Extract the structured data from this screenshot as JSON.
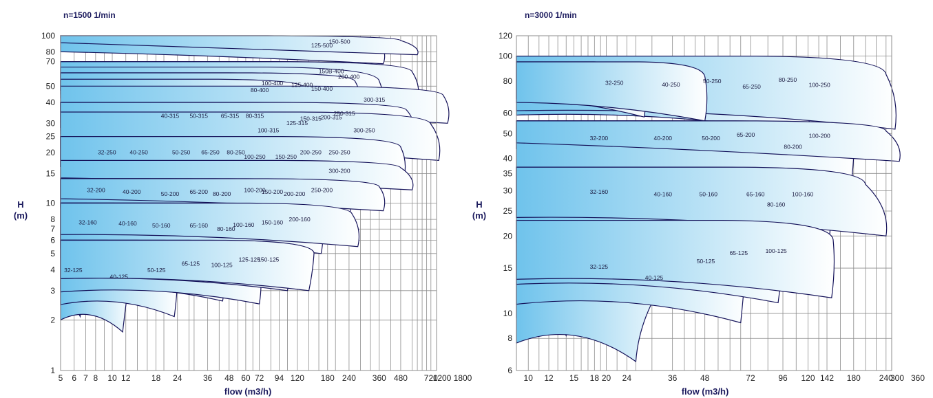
{
  "chart_data": [
    {
      "type": "area",
      "title": "n=1500  1/min",
      "xlabel": "flow (m3/h)",
      "ylabel": "H\n(m)",
      "x_scale": "log",
      "y_scale": "log",
      "xlim": [
        5,
        1800
      ],
      "ylim": [
        1,
        100
      ],
      "x_ticks": [
        "5",
        "6",
        "7",
        "8",
        "10",
        "12",
        "18",
        "24",
        "36",
        "48",
        "60",
        "72",
        "94",
        "120",
        "180",
        "240",
        "360",
        "480",
        "720",
        "1200",
        "1800"
      ],
      "y_ticks": [
        "1",
        "2",
        "3",
        "4",
        "5",
        "6",
        "7",
        "8",
        "10",
        "15",
        "20",
        "25",
        "30",
        "40",
        "50",
        "70",
        "80",
        "100"
      ],
      "grid": true,
      "pumps": [
        {
          "label": "32-125",
          "qmax": 7.0,
          "hmax": 6.0,
          "qend": 6.5,
          "hend": 2.1
        },
        {
          "label": "40-125",
          "qmax": 13,
          "hmax": 6.0,
          "qend": 11.5,
          "hend": 1.7
        },
        {
          "label": "50-125",
          "qmax": 24,
          "hmax": 6.0,
          "qend": 23,
          "hend": 2.1
        },
        {
          "label": "65-125",
          "qmax": 42,
          "hmax": 6.0,
          "qend": 44,
          "hend": 2.6
        },
        {
          "label": "100-125",
          "qmax": 70,
          "hmax": 6.0,
          "qend": 72,
          "hend": 2.5
        },
        {
          "label": "125-125",
          "qmax": 110,
          "hmax": 6.0,
          "qend": 105,
          "hend": 3.0
        },
        {
          "label": "150-125",
          "qmax": 150,
          "hmax": 6.0,
          "qend": 140,
          "hend": 3.0
        },
        {
          "label": "32-160",
          "qmax": 8.5,
          "hmax": 10,
          "qend": 9.5,
          "hend": 5.0
        },
        {
          "label": "40-160",
          "qmax": 15,
          "hmax": 10,
          "qend": 16,
          "hend": 4.8
        },
        {
          "label": "50-160",
          "qmax": 26,
          "hmax": 10,
          "qend": 27,
          "hend": 4.5
        },
        {
          "label": "65-160",
          "qmax": 48,
          "hmax": 10,
          "qend": 50,
          "hend": 4.5
        },
        {
          "label": "80-160",
          "qmax": 75,
          "hmax": 10,
          "qend": 72,
          "hend": 4.0
        },
        {
          "label": "100-160",
          "qmax": 100,
          "hmax": 10,
          "qend": 105,
          "hend": 4.6
        },
        {
          "label": "150-160",
          "qmax": 160,
          "hmax": 10,
          "qend": 165,
          "hend": 5.0
        },
        {
          "label": "32-200",
          "qmax": 9.5,
          "hmax": 14,
          "qend": 10.5,
          "hend": 9.0
        },
        {
          "label": "40-200",
          "qmax": 16,
          "hmax": 14,
          "qend": 18,
          "hend": 8.5
        },
        {
          "label": "50-200",
          "qmax": 30,
          "hmax": 14,
          "qend": 32,
          "hend": 8.0
        },
        {
          "label": "65-200",
          "qmax": 48,
          "hmax": 14,
          "qend": 50,
          "hend": 8.5
        },
        {
          "label": "80-200",
          "qmax": 70,
          "hmax": 14,
          "qend": 78,
          "hend": 8.0
        },
        {
          "label": "100-200",
          "qmax": 120,
          "hmax": 14,
          "qend": 112,
          "hend": 9.0
        },
        {
          "label": "150-200",
          "qmax": 160,
          "hmax": 14,
          "qend": 150,
          "hend": 8.5
        },
        {
          "label": "200-200",
          "qmax": 230,
          "hmax": 14,
          "qend": 240,
          "hend": 8.0
        },
        {
          "label": "200-160",
          "qmax": 250,
          "hmax": 10,
          "qend": 270,
          "hend": 5.5
        },
        {
          "label": "32-250",
          "qmax": 11,
          "hmax": 25,
          "qend": 12,
          "hend": 14
        },
        {
          "label": "40-250",
          "qmax": 18,
          "hmax": 25,
          "qend": 20,
          "hend": 14
        },
        {
          "label": "50-250",
          "qmax": 36,
          "hmax": 25,
          "qend": 38,
          "hend": 14
        },
        {
          "label": "65-250",
          "qmax": 58,
          "hmax": 25,
          "qend": 60,
          "hend": 14
        },
        {
          "label": "80-250",
          "qmax": 88,
          "hmax": 25,
          "qend": 90,
          "hend": 14
        },
        {
          "label": "100-250",
          "qmax": 120,
          "hmax": 25,
          "qend": 125,
          "hend": 12
        },
        {
          "label": "150-250",
          "qmax": 200,
          "hmax": 25,
          "qend": 205,
          "hend": 12
        },
        {
          "label": "200-250",
          "qmax": 300,
          "hmax": 25,
          "qend": 320,
          "hend": 14
        },
        {
          "label": "250-250",
          "qmax": 480,
          "hmax": 25,
          "qend": 500,
          "hend": 14
        },
        {
          "label": "250-200",
          "qmax": 360,
          "hmax": 14,
          "qend": 380,
          "hend": 9
        },
        {
          "label": "300-200",
          "qmax": 480,
          "hmax": 18,
          "qend": 560,
          "hend": 12
        },
        {
          "label": "40-315",
          "qmax": 30,
          "hmax": 40,
          "qend": 32,
          "hend": 24
        },
        {
          "label": "50-315",
          "qmax": 48,
          "hmax": 40,
          "qend": 52,
          "hend": 24
        },
        {
          "label": "65-315",
          "qmax": 80,
          "hmax": 40,
          "qend": 84,
          "hend": 24
        },
        {
          "label": "80-315",
          "qmax": 120,
          "hmax": 40,
          "qend": 125,
          "hend": 24
        },
        {
          "label": "100-315",
          "qmax": 150,
          "hmax": 40,
          "qend": 160,
          "hend": 15
        },
        {
          "label": "125-315",
          "qmax": 240,
          "hmax": 40,
          "qend": 245,
          "hend": 19
        },
        {
          "label": "150-315",
          "qmax": 300,
          "hmax": 40,
          "qend": 330,
          "hend": 22
        },
        {
          "label": "200-315",
          "qmax": 420,
          "hmax": 40,
          "qend": 430,
          "hend": 23
        },
        {
          "label": "250-315",
          "qmax": 520,
          "hmax": 40,
          "qend": 560,
          "hend": 26
        },
        {
          "label": "300-250",
          "qmax": 720,
          "hmax": 35,
          "qend": 800,
          "hend": 18
        },
        {
          "label": "300-315",
          "qmax": 850,
          "hmax": 50,
          "qend": 900,
          "hend": 30
        },
        {
          "label": "80-400",
          "qmax": 130,
          "hmax": 55,
          "qend": 135,
          "hend": 36
        },
        {
          "label": "100-400",
          "qmax": 160,
          "hmax": 60,
          "qend": 170,
          "hend": 40
        },
        {
          "label": "125-400",
          "qmax": 260,
          "hmax": 60,
          "qend": 270,
          "hend": 38
        },
        {
          "label": "150-400",
          "qmax": 360,
          "hmax": 65,
          "qend": 380,
          "hend": 30
        },
        {
          "label": "150B-400",
          "qmax": 420,
          "hmax": 70,
          "qend": 440,
          "hend": 48
        },
        {
          "label": "200-400",
          "qmax": 560,
          "hmax": 70,
          "qend": 600,
          "hend": 40
        },
        {
          "label": "125-500",
          "qmax": 360,
          "hmax": 100,
          "qend": 380,
          "hend": 68
        },
        {
          "label": "150-500",
          "qmax": 480,
          "hmax": 100,
          "qend": 600,
          "hend": 77
        }
      ]
    },
    {
      "type": "area",
      "title": "n=3000  1/min",
      "xlabel": "flow (m3/h)",
      "ylabel": "H\n(m)",
      "x_scale": "log",
      "y_scale": "log",
      "xlim": [
        9,
        360
      ],
      "ylim": [
        6,
        120
      ],
      "x_ticks": [
        "10",
        "12",
        "15",
        "18",
        "20",
        "24",
        "36",
        "48",
        "72",
        "96",
        "120",
        "142",
        "180",
        "240",
        "300",
        "360"
      ],
      "y_ticks": [
        "6",
        "8",
        "10",
        "15",
        "20",
        "25",
        "30",
        "35",
        "40",
        "50",
        "60",
        "80",
        "100",
        "120"
      ],
      "grid": true,
      "pumps": [
        {
          "label": "32-125",
          "qmax": 22,
          "hmax": 23,
          "qend": 14,
          "hend": 8.2
        },
        {
          "label": "40-125",
          "qmax": 40,
          "hmax": 23,
          "qend": 26,
          "hend": 6.5
        },
        {
          "label": "50-125",
          "qmax": 70,
          "hmax": 23,
          "qend": 66,
          "hend": 9.2
        },
        {
          "label": "65-125",
          "qmax": 100,
          "hmax": 23,
          "qend": 92,
          "hend": 11
        },
        {
          "label": "100-125",
          "qmax": 150,
          "hmax": 23,
          "qend": 148,
          "hend": 11.5
        },
        {
          "label": "32-160",
          "qmax": 22,
          "hmax": 37,
          "qend": 25,
          "hend": 21
        },
        {
          "label": "40-160",
          "qmax": 44,
          "hmax": 37,
          "qend": 46,
          "hend": 20
        },
        {
          "label": "50-160",
          "qmax": 72,
          "hmax": 37,
          "qend": 72,
          "hend": 20
        },
        {
          "label": "65-160",
          "qmax": 120,
          "hmax": 37,
          "qend": 112,
          "hend": 20
        },
        {
          "label": "80-160",
          "qmax": 150,
          "hmax": 37,
          "qend": 142,
          "hend": 16
        },
        {
          "label": "100-160",
          "qmax": 200,
          "hmax": 37,
          "qend": 240,
          "hend": 20
        },
        {
          "label": "32-200",
          "qmax": 22,
          "hmax": 56,
          "qend": 25,
          "hend": 37
        },
        {
          "label": "40-200",
          "qmax": 44,
          "hmax": 56,
          "qend": 44,
          "hend": 37
        },
        {
          "label": "50-200",
          "qmax": 74,
          "hmax": 56,
          "qend": 72,
          "hend": 37
        },
        {
          "label": "65-200",
          "qmax": 108,
          "hmax": 56,
          "qend": 100,
          "hend": 40
        },
        {
          "label": "80-200",
          "qmax": 180,
          "hmax": 56,
          "qend": 175,
          "hend": 31
        },
        {
          "label": "100-200",
          "qmax": 240,
          "hmax": 56,
          "qend": 270,
          "hend": 39
        },
        {
          "label": "32-250",
          "qmax": 26,
          "hmax": 95,
          "qend": 28,
          "hend": 58
        },
        {
          "label": "40-250",
          "qmax": 48,
          "hmax": 95,
          "qend": 48,
          "hend": 56
        },
        {
          "label": "50-250",
          "qmax": 75,
          "hmax": 100,
          "qend": 80,
          "hend": 56
        },
        {
          "label": "65-250",
          "qmax": 115,
          "hmax": 100,
          "qend": 120,
          "hend": 50
        },
        {
          "label": "80-250",
          "qmax": 170,
          "hmax": 100,
          "qend": 200,
          "hend": 58
        },
        {
          "label": "100-250",
          "qmax": 240,
          "hmax": 100,
          "qend": 260,
          "hend": 52
        }
      ]
    }
  ]
}
